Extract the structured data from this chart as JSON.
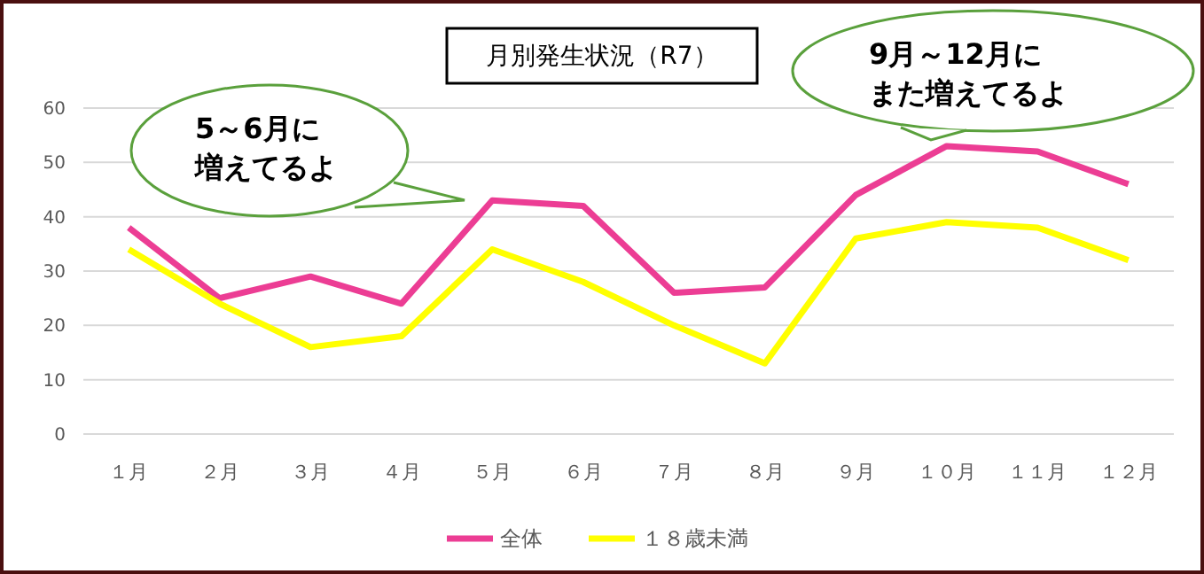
{
  "chart_data": {
    "type": "line",
    "title": "月別発生状況（R7）",
    "categories": [
      "１月",
      "２月",
      "３月",
      "４月",
      "５月",
      "６月",
      "７月",
      "８月",
      "９月",
      "１０月",
      "１１月",
      "１２月"
    ],
    "series": [
      {
        "name": "全体",
        "color": "#ec3d94",
        "values": [
          38,
          25,
          29,
          24,
          43,
          42,
          26,
          27,
          44,
          53,
          52,
          46
        ]
      },
      {
        "name": "１８歳未満",
        "color": "#ffff00",
        "values": [
          34,
          24,
          16,
          18,
          34,
          28,
          20,
          13,
          36,
          39,
          38,
          32
        ]
      }
    ],
    "ylim": [
      0,
      60
    ],
    "yticks": [
      0,
      10,
      20,
      30,
      40,
      50,
      60
    ],
    "grid": "y",
    "legend": "bottom",
    "marker": "none",
    "line_style": "solid",
    "annotations": [
      "5～6月に",
      "増えてるよ",
      "9月～12月に",
      "また増えてるよ"
    ]
  }
}
